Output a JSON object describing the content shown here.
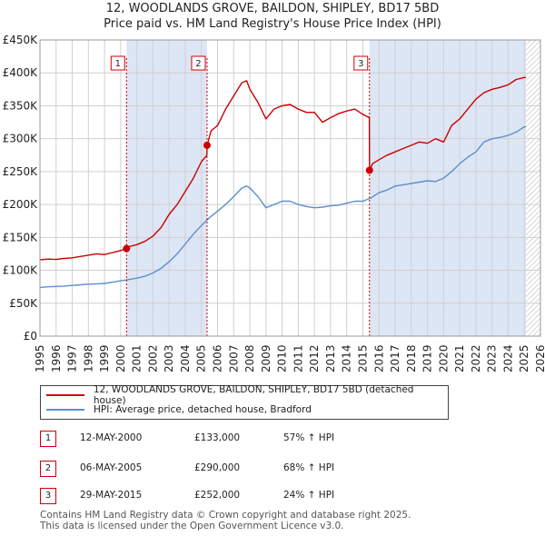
{
  "title_line1": "12, WOODLANDS GROVE, BAILDON, SHIPLEY, BD17 5BD",
  "title_line2": "Price paid vs. HM Land Registry's House Price Index (HPI)",
  "legend": {
    "series1": "12, WOODLANDS GROVE, BAILDON, SHIPLEY, BD17 5BD (detached house)",
    "series2": "HPI: Average price, detached house, Bradford"
  },
  "sales": [
    {
      "num": "1",
      "date": "12-MAY-2000",
      "price": "£133,000",
      "hpi": "57% ↑ HPI"
    },
    {
      "num": "2",
      "date": "06-MAY-2005",
      "price": "£290,000",
      "hpi": "68% ↑ HPI"
    },
    {
      "num": "3",
      "date": "29-MAY-2015",
      "price": "£252,000",
      "hpi": "24% ↑ HPI"
    }
  ],
  "footer": {
    "line1": "Contains HM Land Registry data © Crown copyright and database right 2025.",
    "line2": "This data is licensed under the Open Government Licence v3.0."
  },
  "colors": {
    "price_line": "#cc0000",
    "hpi_line": "#5b8fcf",
    "shade": "#dde6f5",
    "grid": "#d0d0d0"
  },
  "chart_data": {
    "type": "line",
    "title": "Price paid vs. HM Land Registry's House Price Index (HPI)",
    "xlim": [
      1995,
      2026
    ],
    "ylim": [
      0,
      450000
    ],
    "x_ticks": [
      "1995",
      "1996",
      "1997",
      "1998",
      "1999",
      "2000",
      "2001",
      "2002",
      "2003",
      "2004",
      "2005",
      "2006",
      "2007",
      "2008",
      "2009",
      "2010",
      "2011",
      "2012",
      "2013",
      "2014",
      "2015",
      "2016",
      "2017",
      "2018",
      "2019",
      "2020",
      "2021",
      "2022",
      "2023",
      "2024",
      "2025",
      "2026"
    ],
    "y_ticks": [
      {
        "v": 0,
        "label": "£0"
      },
      {
        "v": 50000,
        "label": "£50K"
      },
      {
        "v": 100000,
        "label": "£100K"
      },
      {
        "v": 150000,
        "label": "£150K"
      },
      {
        "v": 200000,
        "label": "£200K"
      },
      {
        "v": 250000,
        "label": "£250K"
      },
      {
        "v": 300000,
        "label": "£300K"
      },
      {
        "v": 350000,
        "label": "£350K"
      },
      {
        "v": 400000,
        "label": "£400K"
      },
      {
        "v": 450000,
        "label": "£450K"
      }
    ],
    "shaded_ranges": [
      [
        2000.36,
        2005.35
      ],
      [
        2015.41,
        2025.1
      ]
    ],
    "hatched_range": [
      2025.1,
      2026
    ],
    "sale_markers": [
      {
        "label": "1",
        "x": 2000.36,
        "y": 133000
      },
      {
        "label": "2",
        "x": 2005.35,
        "y": 290000
      },
      {
        "label": "3",
        "x": 2015.41,
        "y": 252000
      }
    ],
    "series": [
      {
        "name": "12, WOODLANDS GROVE, BAILDON, SHIPLEY, BD17 5BD (detached house)",
        "x": [
          1995,
          1995.5,
          1996,
          1996.5,
          1997,
          1997.5,
          1998,
          1998.5,
          1999,
          1999.5,
          2000,
          2000.36,
          2000.5,
          2001,
          2001.5,
          2002,
          2002.5,
          2003,
          2003.5,
          2004,
          2004.5,
          2005,
          2005.34,
          2005.35,
          2005.6,
          2006,
          2006.5,
          2007,
          2007.5,
          2007.8,
          2008,
          2008.5,
          2009,
          2009.5,
          2010,
          2010.5,
          2011,
          2011.5,
          2012,
          2012.5,
          2013,
          2013.5,
          2014,
          2014.5,
          2015,
          2015.4,
          2015.41,
          2015.6,
          2016,
          2016.5,
          2017,
          2017.5,
          2018,
          2018.5,
          2019,
          2019.5,
          2020,
          2020.5,
          2021,
          2021.5,
          2022,
          2022.5,
          2023,
          2023.5,
          2024,
          2024.5,
          2025,
          2025.1
        ],
        "y": [
          116000,
          117000,
          116500,
          118000,
          119000,
          121000,
          123000,
          125000,
          124000,
          127000,
          130000,
          133000,
          136000,
          139000,
          144000,
          152000,
          165000,
          185000,
          200000,
          220000,
          240000,
          265000,
          275000,
          290000,
          312000,
          320000,
          345000,
          365000,
          385000,
          388000,
          375000,
          355000,
          330000,
          345000,
          350000,
          352000,
          345000,
          340000,
          340000,
          325000,
          332000,
          338000,
          342000,
          345000,
          337000,
          332000,
          252000,
          262000,
          268000,
          275000,
          280000,
          285000,
          290000,
          295000,
          293000,
          300000,
          295000,
          320000,
          330000,
          345000,
          360000,
          370000,
          375000,
          378000,
          382000,
          390000,
          393000,
          393000
        ]
      },
      {
        "name": "HPI: Average price, detached house, Bradford",
        "x": [
          1995,
          1995.5,
          1996,
          1996.5,
          1997,
          1997.5,
          1998,
          1998.5,
          1999,
          1999.5,
          2000,
          2000.5,
          2001,
          2001.5,
          2002,
          2002.5,
          2003,
          2003.5,
          2004,
          2004.5,
          2005,
          2005.5,
          2006,
          2006.5,
          2007,
          2007.5,
          2007.8,
          2008,
          2008.5,
          2009,
          2009.5,
          2010,
          2010.5,
          2011,
          2011.5,
          2012,
          2012.5,
          2013,
          2013.5,
          2014,
          2014.5,
          2015,
          2015.5,
          2016,
          2016.5,
          2017,
          2017.5,
          2018,
          2018.5,
          2019,
          2019.5,
          2020,
          2020.5,
          2021,
          2021.5,
          2022,
          2022.5,
          2023,
          2023.5,
          2024,
          2024.5,
          2025,
          2025.1
        ],
        "y": [
          74000,
          75000,
          75500,
          76000,
          77000,
          78000,
          79000,
          79500,
          80000,
          82000,
          84000,
          86000,
          88000,
          91000,
          96000,
          103000,
          113000,
          125000,
          140000,
          155000,
          168000,
          180000,
          190000,
          200000,
          212000,
          225000,
          228000,
          225000,
          212000,
          195000,
          200000,
          205000,
          205000,
          200000,
          197000,
          195000,
          196000,
          198000,
          199000,
          202000,
          205000,
          205000,
          210000,
          218000,
          222000,
          228000,
          230000,
          232000,
          234000,
          236000,
          235000,
          240000,
          250000,
          262000,
          272000,
          280000,
          295000,
          300000,
          302000,
          305000,
          310000,
          318000,
          318000
        ]
      }
    ]
  }
}
